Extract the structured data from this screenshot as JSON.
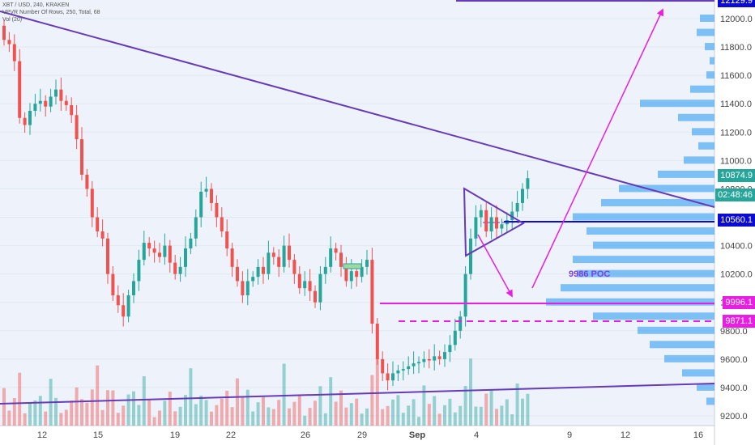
{
  "header": {
    "symbol_line": "XBT / USD, 240, KRAKEN",
    "indicator_line": "VPVR Number Of Rows, 250, Total, 68",
    "volume_line": "Vol (20)"
  },
  "colors": {
    "up": "#26a69a",
    "down": "#ef5350",
    "trendline": "#673ab7",
    "magenta": "#e91ee3",
    "profile": "#2196f3",
    "blue_label": "#0b0bd1",
    "poc_text": "#7b3fe4"
  },
  "annotations": {
    "poc_label": "9986 POC"
  },
  "price_labels": {
    "top_level": "12129.9",
    "current": "10874.9",
    "countdown": "02:48:46",
    "blue_level": "10560.1",
    "magenta_1": "9996.1",
    "magenta_2": "9871.1"
  },
  "chart_data": {
    "type": "candlestick",
    "title": "",
    "xlabel": "",
    "ylabel": "",
    "ylim": [
      9150,
      12180
    ],
    "y_ticks": [
      9200,
      9400,
      9600,
      9800,
      10000,
      10200,
      10400,
      10600,
      10800,
      11000,
      11200,
      11400,
      11600,
      11800,
      12000
    ],
    "x_tick_labels": [
      "12",
      "15",
      "19",
      "22",
      "26",
      "29",
      "Sep",
      "4",
      "9",
      "12",
      "16"
    ],
    "series": [
      {
        "name": "",
        "close": [
          11850,
          11820,
          11700,
          11300,
          11250,
          11350,
          11400,
          11420,
          11380,
          11450,
          11500,
          11420,
          11390,
          11320,
          11150,
          10900,
          10800,
          10600,
          10500,
          10450,
          10200,
          10050,
          9980,
          9900,
          10050,
          10150,
          10300,
          10420,
          10380,
          10350,
          10320,
          10400,
          10280,
          10200,
          10250,
          10380,
          10450,
          10600,
          10780,
          10800,
          10700,
          10600,
          10500,
          10380,
          10250,
          10150,
          10050,
          10150,
          10180,
          10250,
          10200,
          10350,
          10320,
          10250,
          10400,
          10300,
          10200,
          10100,
          10150,
          10080,
          10000,
          10200,
          10250,
          10380,
          10350,
          10250,
          10150,
          10220,
          10180,
          10250,
          10300,
          9850,
          9600,
          9500,
          9450,
          9500,
          9520,
          9530,
          9550,
          9570,
          9580,
          9600,
          9590,
          9620,
          9600,
          9650,
          9700,
          9800,
          9900,
          10200,
          10450,
          10600,
          10650,
          10500,
          10600,
          10520,
          10550,
          10580,
          10640,
          10700,
          10800,
          10875
        ]
      }
    ]
  }
}
